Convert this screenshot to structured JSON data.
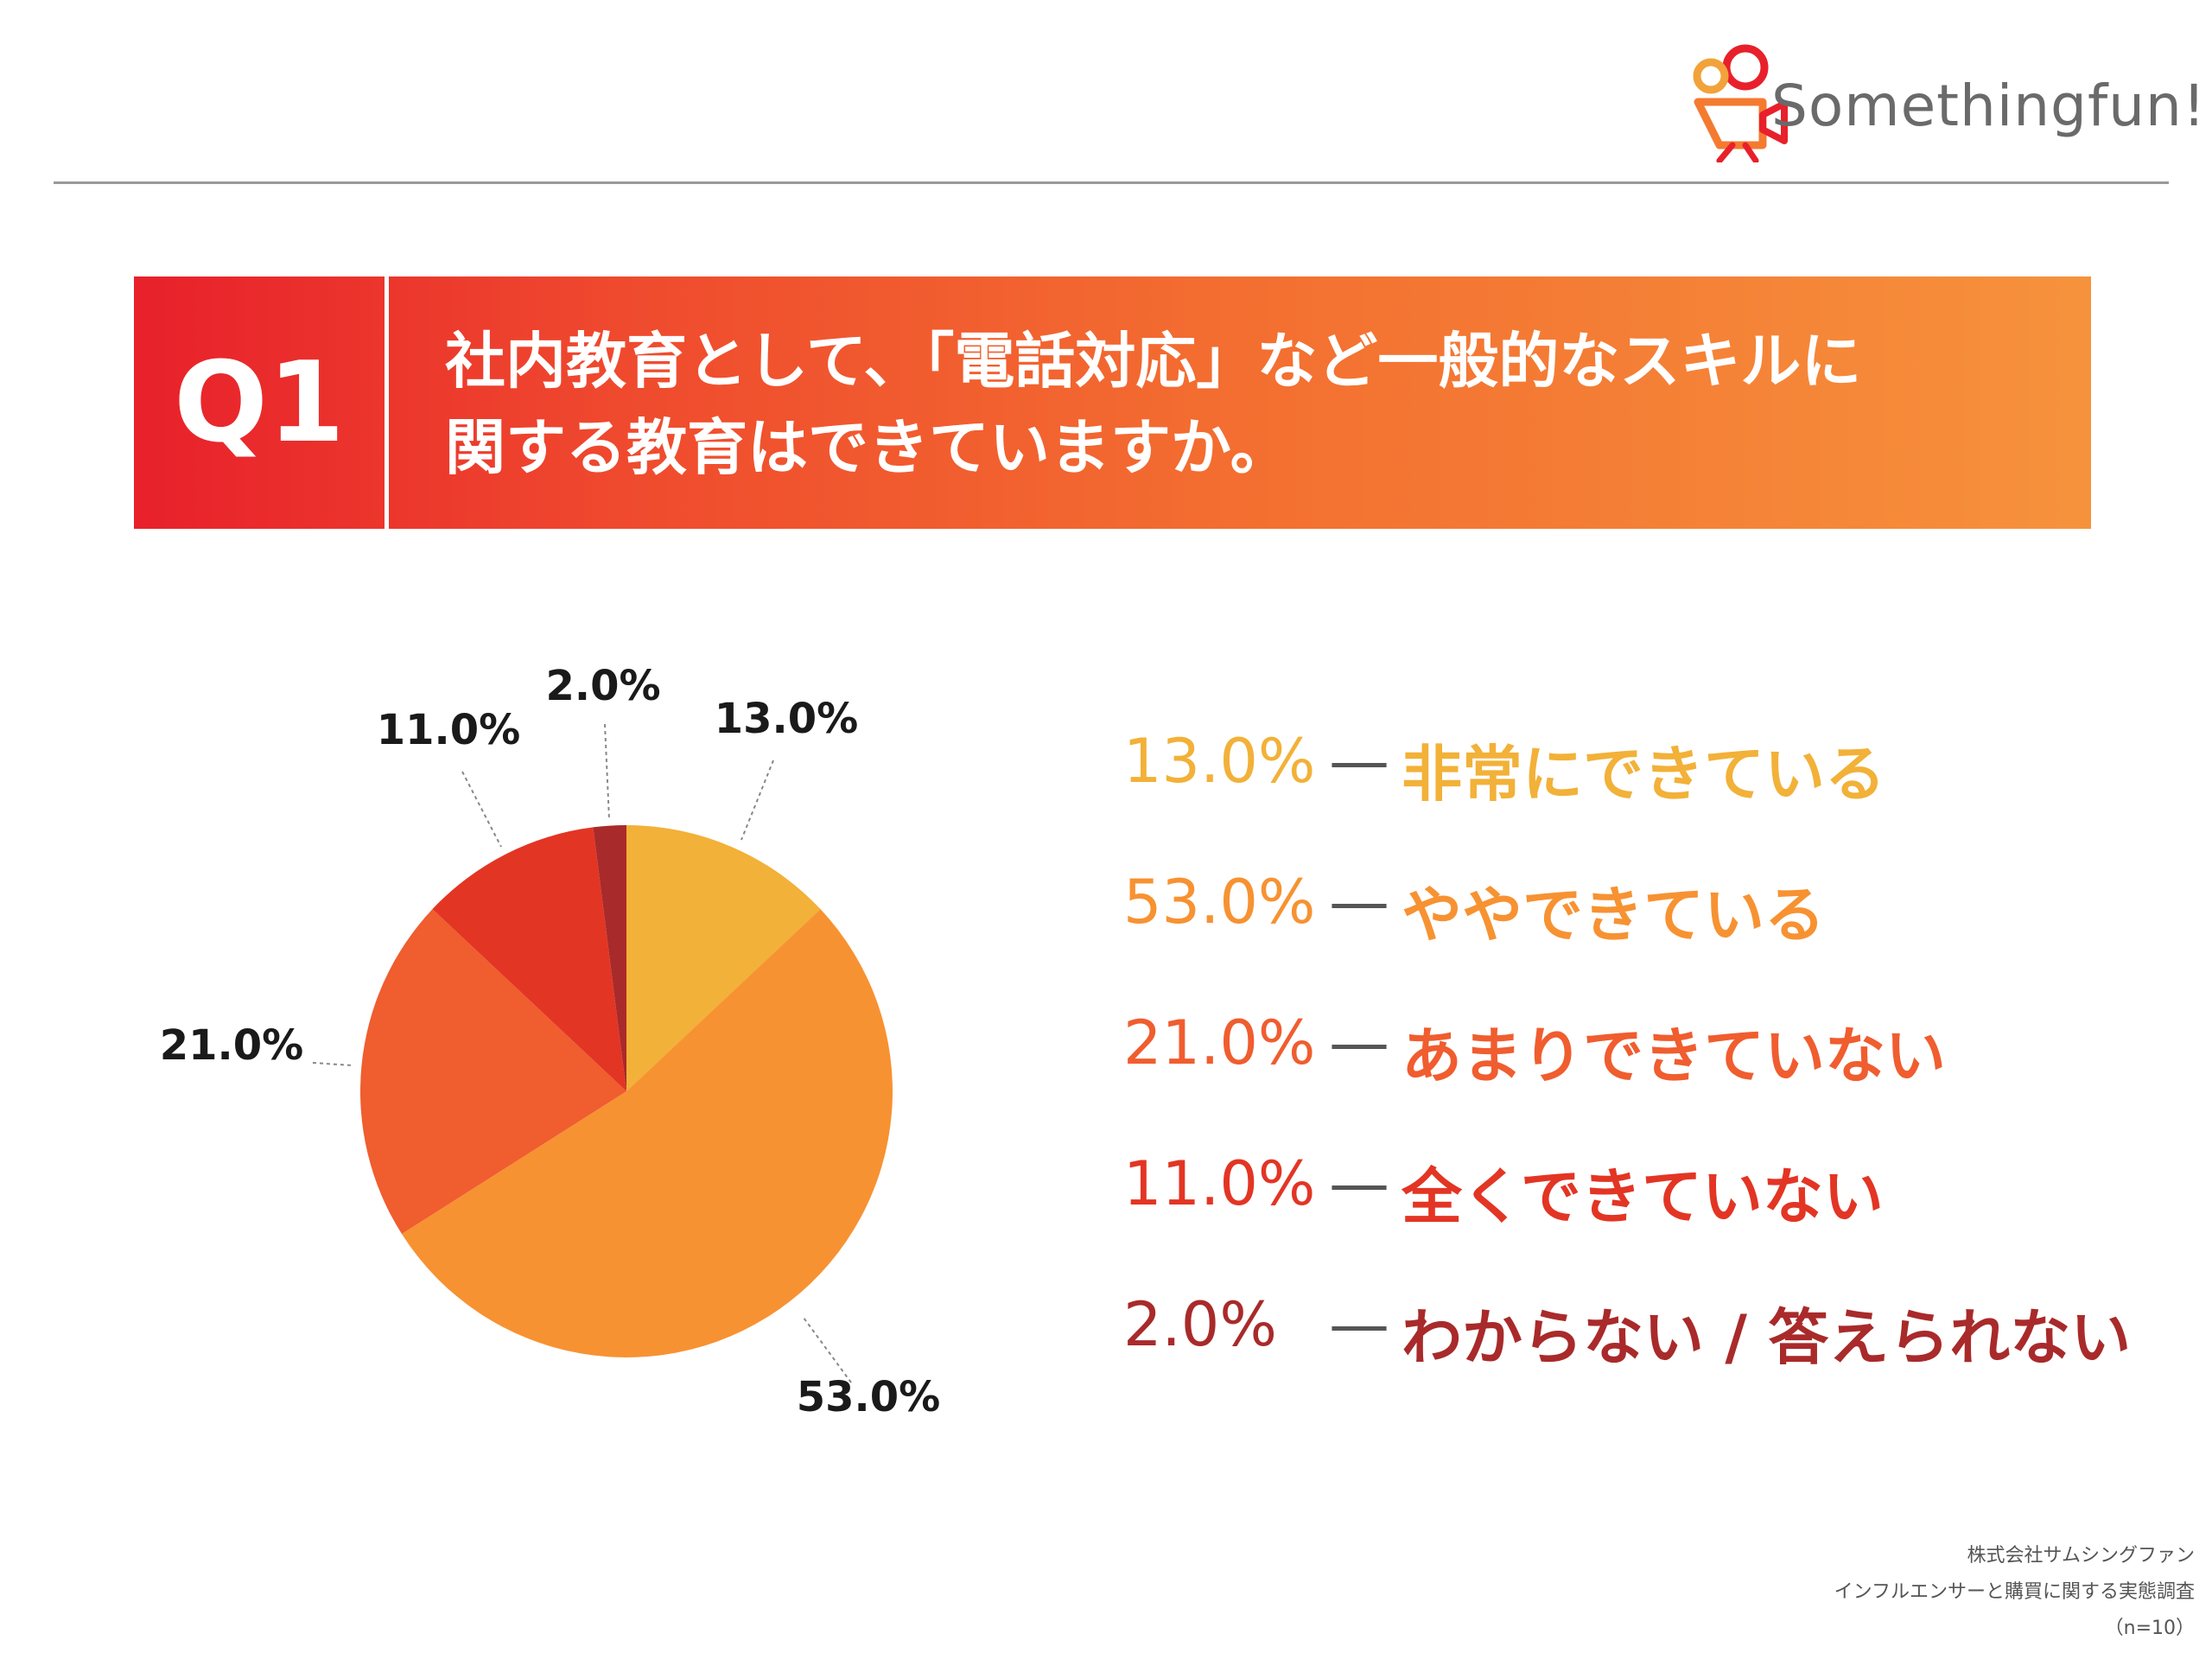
{
  "header": {
    "logo_text": "Somethingfun!"
  },
  "question": {
    "label": "Q1",
    "lines": [
      "社内教育として、「電話対応」など一般的なスキルに",
      "関する教育はできていますか。"
    ]
  },
  "chart_data": {
    "type": "pie",
    "categories": [
      "非常にできている",
      "ややできている",
      "あまりできていない",
      "全くできていない",
      "わからない / 答えられない"
    ],
    "values": [
      13.0,
      53.0,
      21.0,
      11.0,
      2.0
    ],
    "value_labels": [
      "13.0%",
      "53.0%",
      "21.0%",
      "11.0%",
      "2.0%"
    ],
    "colors": [
      "#f2b138",
      "#f79232",
      "#f05d2f",
      "#e33524",
      "#a92a2a"
    ],
    "legend_placement": "right"
  },
  "legend": {
    "items": [
      {
        "pct": "13.0%",
        "dash": "—",
        "text": "非常にできている",
        "color": "#f2b138"
      },
      {
        "pct": "53.0%",
        "dash": "—",
        "text": "ややできている",
        "color": "#f79232"
      },
      {
        "pct": "21.0%",
        "dash": "—",
        "text": "あまりできていない",
        "color": "#f05d2f"
      },
      {
        "pct": "11.0%",
        "dash": "—",
        "text": "全くできていない",
        "color": "#e33524"
      },
      {
        "pct": "2.0%",
        "dash": "—",
        "text": "わからない / 答えられない",
        "color": "#a92a2a"
      }
    ]
  },
  "footer": {
    "company": "株式会社サムシングファン",
    "survey": "インフルエンサーと購買に関する実態調査",
    "sample": "（n=10）"
  }
}
